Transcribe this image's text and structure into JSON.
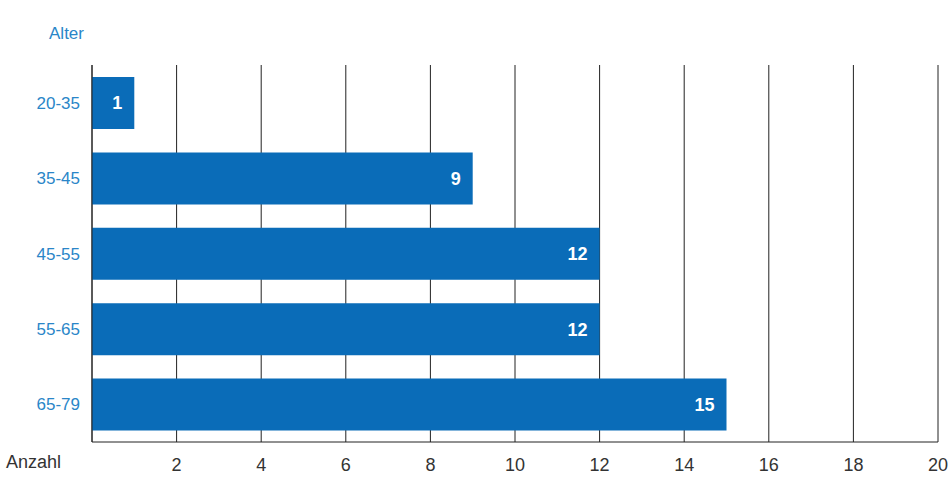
{
  "chart_data": {
    "type": "bar",
    "orientation": "horizontal",
    "y_label": "Alter",
    "x_label": "Anzahl",
    "categories": [
      "20-35",
      "35-45",
      "45-55",
      "55-65",
      "65-79"
    ],
    "values": [
      1,
      9,
      12,
      12,
      15
    ],
    "color": "#0a6cb8",
    "xlim": [
      0,
      20
    ],
    "xticks": [
      2,
      4,
      6,
      8,
      10,
      12,
      14,
      16,
      18,
      20
    ],
    "grid": true,
    "data_labels": true
  }
}
